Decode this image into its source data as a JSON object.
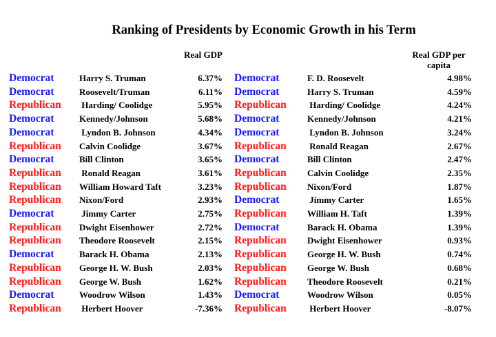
{
  "title": "Ranking of Presidents by Economic Growth in his Term",
  "colors": {
    "Democrat": "#1a1aff",
    "Republican": "#ff1a1a"
  },
  "left_table": {
    "header": "Real GDP",
    "rows": [
      {
        "party": "Democrat",
        "president": "Harry S. Truman",
        "value": "6.37%"
      },
      {
        "party": "Democrat",
        "president": "Roosevelt/Truman",
        "value": "6.11%"
      },
      {
        "party": "Republican",
        "president": " Harding/ Coolidge",
        "value": "5.95%"
      },
      {
        "party": "Democrat",
        "president": "Kennedy/Johnson",
        "value": "5.68%"
      },
      {
        "party": "Democrat",
        "president": " Lyndon B. Johnson",
        "value": "4.34%"
      },
      {
        "party": "Republican",
        "president": "Calvin Coolidge",
        "value": "3.67%"
      },
      {
        "party": "Democrat",
        "president": "Bill Clinton",
        "value": "3.65%"
      },
      {
        "party": "Republican",
        "president": " Ronald Reagan",
        "value": "3.61%"
      },
      {
        "party": "Republican",
        "president": "William Howard Taft",
        "value": "3.23%"
      },
      {
        "party": "Republican",
        "president": "Nixon/Ford",
        "value": "2.93%"
      },
      {
        "party": "Democrat",
        "president": " Jimmy Carter",
        "value": "2.75%"
      },
      {
        "party": "Republican",
        "president": "Dwight Eisenhower",
        "value": "2.72%"
      },
      {
        "party": "Republican",
        "president": "Theodore Roosevelt",
        "value": "2.15%"
      },
      {
        "party": "Democrat",
        "president": "Barack H. Obama",
        "value": "2.13%"
      },
      {
        "party": "Republican",
        "president": "George H. W. Bush",
        "value": "2.03%"
      },
      {
        "party": "Republican",
        "president": "George W. Bush",
        "value": "1.62%"
      },
      {
        "party": "Democrat",
        "president": "Woodrow Wilson",
        "value": "1.43%"
      },
      {
        "party": "Republican",
        "president": " Herbert Hoover",
        "value": "-7.36%"
      }
    ]
  },
  "right_table": {
    "header_line1": "Real GDP per",
    "header_line2": "capita",
    "rows": [
      {
        "party": "Democrat",
        "president": "F. D. Roosevelt",
        "value": "4.98%"
      },
      {
        "party": "Democrat",
        "president": "Harry S. Truman",
        "value": "4.59%"
      },
      {
        "party": "Republican",
        "president": " Harding/ Coolidge",
        "value": "4.24%"
      },
      {
        "party": "Democrat",
        "president": "Kennedy/Johnson",
        "value": "4.21%"
      },
      {
        "party": "Democrat",
        "president": " Lyndon B. Johnson",
        "value": "3.24%"
      },
      {
        "party": "Republican",
        "president": " Ronald Reagan",
        "value": "2.67%"
      },
      {
        "party": "Democrat",
        "president": "Bill Clinton",
        "value": "2.47%"
      },
      {
        "party": "Republican",
        "president": "Calvin Coolidge",
        "value": "2.35%"
      },
      {
        "party": "Republican",
        "president": "Nixon/Ford",
        "value": "1.87%"
      },
      {
        "party": "Democrat",
        "president": " Jimmy Carter",
        "value": "1.65%"
      },
      {
        "party": "Republican",
        "president": "William H. Taft",
        "value": "1.39%"
      },
      {
        "party": "Democrat",
        "president": "Barack H. Obama",
        "value": "1.39%"
      },
      {
        "party": "Republican",
        "president": "Dwight Eisenhower",
        "value": "0.93%"
      },
      {
        "party": "Republican",
        "president": "George H. W. Bush",
        "value": "0.74%"
      },
      {
        "party": "Republican",
        "president": "George W. Bush",
        "value": "0.68%"
      },
      {
        "party": "Republican",
        "president": "Theodore Roosevelt",
        "value": "0.21%"
      },
      {
        "party": "Democrat",
        "president": "Woodrow Wilson",
        "value": "0.05%"
      },
      {
        "party": "Republican",
        "president": " Herbert Hoover",
        "value": "-8.07%"
      }
    ]
  }
}
